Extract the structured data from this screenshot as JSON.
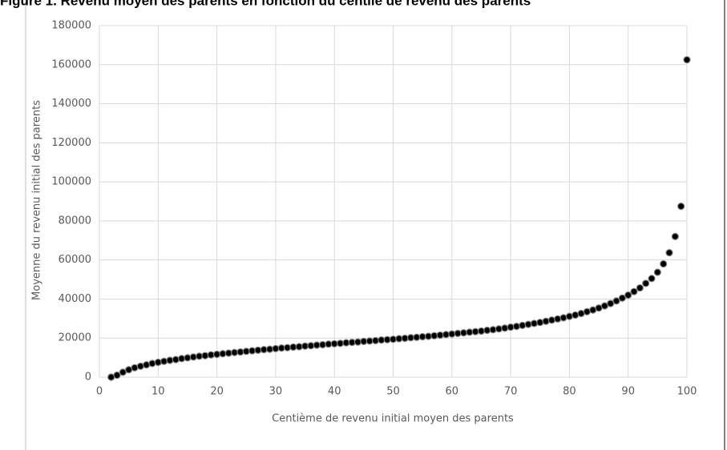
{
  "chart_data": {
    "type": "scatter",
    "title": "Figure 1. Revenu moyen des parents en fonction du centile de revenu des parents",
    "x_label": "Centième de revenu initial moyen des parents",
    "y_label": "Moyenne du revenu initial des parents",
    "color": "#000000",
    "grid": true,
    "xlim": [
      0,
      100
    ],
    "xticks": [
      0,
      10,
      20,
      30,
      40,
      50,
      60,
      70,
      80,
      90,
      100
    ],
    "ylim": [
      0,
      180000
    ],
    "yticks": [
      0,
      20000,
      40000,
      60000,
      80000,
      100000,
      120000,
      140000,
      160000,
      180000
    ],
    "x": [
      2,
      3,
      4,
      5,
      6,
      7,
      8,
      9,
      10,
      11,
      12,
      13,
      14,
      15,
      16,
      17,
      18,
      19,
      20,
      21,
      22,
      23,
      24,
      25,
      26,
      27,
      28,
      29,
      30,
      31,
      32,
      33,
      34,
      35,
      36,
      37,
      38,
      39,
      40,
      41,
      42,
      43,
      44,
      45,
      46,
      47,
      48,
      49,
      50,
      51,
      52,
      53,
      54,
      55,
      56,
      57,
      58,
      59,
      60,
      61,
      62,
      63,
      64,
      65,
      66,
      67,
      68,
      69,
      70,
      71,
      72,
      73,
      74,
      75,
      76,
      77,
      78,
      79,
      80,
      81,
      82,
      83,
      84,
      85,
      86,
      87,
      88,
      89,
      90,
      91,
      92,
      93,
      94,
      95,
      96,
      97,
      98,
      99,
      100
    ],
    "values": [
      0,
      1000,
      2500,
      3800,
      4800,
      5600,
      6300,
      7000,
      7600,
      8100,
      8600,
      9000,
      9500,
      9900,
      10300,
      10700,
      11000,
      11400,
      11700,
      12000,
      12300,
      12600,
      12900,
      13200,
      13500,
      13800,
      14100,
      14300,
      14600,
      14900,
      15100,
      15400,
      15600,
      15900,
      16100,
      16400,
      16600,
      16900,
      17100,
      17300,
      17600,
      17800,
      18000,
      18300,
      18500,
      18700,
      19000,
      19200,
      19400,
      19700,
      19900,
      20200,
      20400,
      20700,
      20900,
      21200,
      21500,
      21800,
      22100,
      22400,
      22700,
      23000,
      23300,
      23600,
      24000,
      24300,
      24700,
      25100,
      25600,
      26000,
      26500,
      27000,
      27500,
      28000,
      28600,
      29200,
      29800,
      30400,
      31100,
      31800,
      32600,
      33500,
      34400,
      35400,
      36500,
      37700,
      39000,
      40500,
      42000,
      43800,
      45700,
      48000,
      50500,
      53700,
      58000,
      63700,
      72000,
      87500,
      162500
    ]
  }
}
